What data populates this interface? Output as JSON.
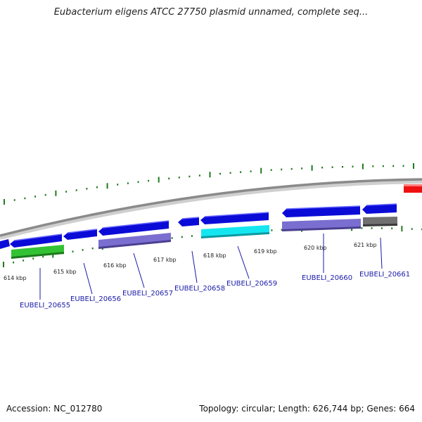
{
  "title": "Eubacterium eligens ATCC 27750 plasmid unnamed, complete seq...",
  "footer": {
    "accession": "Accession: NC_012780",
    "summary": "Topology: circular; Length: 626,744 bp; Genes: 664"
  },
  "colors": {
    "forward_gene": "#0b0bd8",
    "reverse_gene": "#1515e8",
    "cds_purple": "#7a6fd0",
    "cds_green": "#33c233",
    "cds_cyan": "#14e6f0",
    "cds_gray": "#707070",
    "highlight_red": "#ee1111",
    "backbone": "#8a8a8a",
    "tick": "#1e7a1e",
    "label_blue": "#1a1aa8"
  },
  "scale_labels": [
    "614 kbp",
    "615 kbp",
    "616 kbp",
    "617 kbp",
    "618 kbp",
    "619 kbp",
    "620 kbp",
    "621 kbp"
  ],
  "genes": [
    {
      "id": "g55",
      "label": "EUBELI_20655"
    },
    {
      "id": "g56",
      "label": "EUBELI_20656"
    },
    {
      "id": "g57",
      "label": "EUBELI_20657"
    },
    {
      "id": "g58",
      "label": "EUBELI_20658"
    },
    {
      "id": "g59",
      "label": "EUBELI_20659"
    },
    {
      "id": "g60",
      "label": "EUBELI_20660"
    },
    {
      "id": "g61",
      "label": "EUBELI_20661"
    }
  ]
}
